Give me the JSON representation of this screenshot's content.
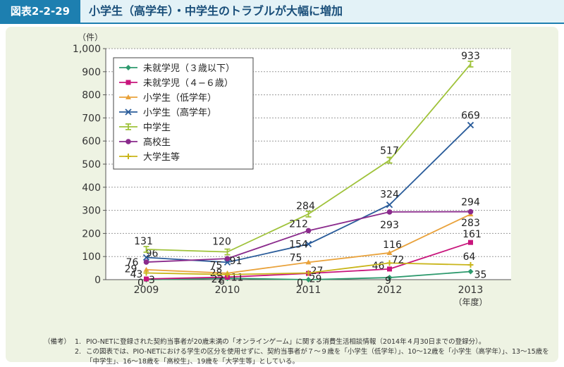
{
  "header": {
    "badge": "図表2-2-29",
    "title": "小学生（高学年）・中学生のトラブルが大幅に増加"
  },
  "chart_data": {
    "type": "line",
    "y_unit_label": "（件）",
    "x_unit_label": "（年度）",
    "categories": [
      "2009",
      "2010",
      "2011",
      "2012",
      "2013"
    ],
    "ylim": [
      0,
      1000
    ],
    "yticks": [
      "0",
      "100",
      "200",
      "300",
      "400",
      "500",
      "600",
      "700",
      "800",
      "900",
      "1,000"
    ],
    "grid": true,
    "legend_position": "top-left",
    "series": [
      {
        "name": "未就学児（３歳以下）",
        "color": "#2e9a6e",
        "marker": "diamond",
        "values": [
          0,
          6,
          0,
          9,
          35
        ],
        "labels": [
          "0",
          "6",
          "0",
          "9",
          "35"
        ]
      },
      {
        "name": "未就学児（４−６歳）",
        "color": "#c8157c",
        "marker": "square",
        "values": [
          3,
          11,
          27,
          46,
          161
        ],
        "labels": [
          "3",
          "11",
          "27",
          "46",
          "161"
        ]
      },
      {
        "name": "小学生（低学年）",
        "color": "#e9a23b",
        "marker": "triangle",
        "values": [
          43,
          28,
          75,
          116,
          283
        ],
        "labels": [
          "43",
          "28",
          "75",
          "116",
          "283"
        ]
      },
      {
        "name": "小学生（高学年）",
        "color": "#2a5c9a",
        "marker": "x",
        "values": [
          96,
          75,
          154,
          324,
          669
        ],
        "labels": [
          "96",
          "75",
          "154",
          "324",
          "669"
        ]
      },
      {
        "name": "中学生",
        "color": "#9fc23a",
        "marker": "bar",
        "values": [
          131,
          120,
          284,
          517,
          933
        ],
        "labels": [
          "131",
          "120",
          "284",
          "517",
          "933"
        ]
      },
      {
        "name": "高校生",
        "color": "#8a2a8c",
        "marker": "circle",
        "values": [
          76,
          91,
          212,
          293,
          294
        ],
        "labels": [
          "76",
          "91",
          "212",
          "293",
          "294"
        ]
      },
      {
        "name": "大学生等",
        "color": "#c9b51a",
        "marker": "plus",
        "values": [
          29,
          22,
          29,
          72,
          64
        ],
        "labels": [
          "29",
          "22",
          "29",
          "72",
          "64"
        ]
      }
    ]
  },
  "notes": {
    "heading": "（備考）",
    "items": [
      {
        "num": "1.",
        "text": "PIO-NETに登録された契約当事者が20歳未満の「オンラインゲーム」に関する消費生活相談情報（2014年４月30日までの登録分）。"
      },
      {
        "num": "2.",
        "text": "この図表では、PIO-NETにおける学生の区分を使用せずに、契約当事者が７～９歳を「小学生（低学年）」、10～12歳を「小学生（高学年）」、13～15歳を「中学生」、16～18歳を「高校生」、19歳を「大学生等」としている。"
      }
    ]
  }
}
